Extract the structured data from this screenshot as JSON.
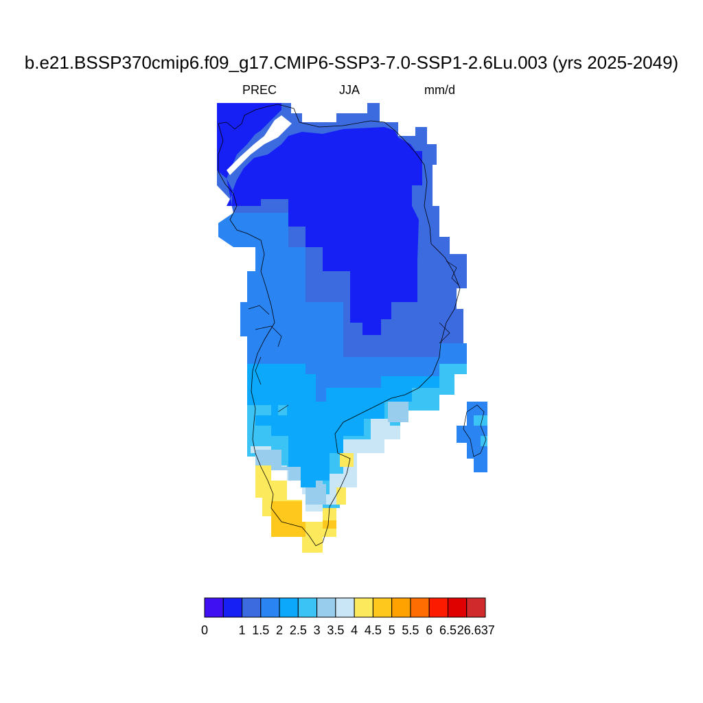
{
  "title": "b.e21.BSSP370cmip6.f09_g17.CMIP6-SSP3-7.0-SSP1-2.6Lu.003 (yrs 2025-2049)",
  "subtitle": {
    "left": "PREC",
    "center": "JJA",
    "right": "mm/d"
  },
  "colorbar": {
    "colors": [
      "#3f10f2",
      "#1620f5",
      "#3c6be0",
      "#2a84f2",
      "#0ba8fb",
      "#3cc3f6",
      "#98cdee",
      "#c9e6f7",
      "#fde95c",
      "#ffc81d",
      "#ffa200",
      "#fe6d01",
      "#fd1b00",
      "#df0000",
      "#d12a2c"
    ],
    "labels": [
      "0",
      "1",
      "1.5",
      "2",
      "2.5",
      "3",
      "3.5",
      "4",
      "4.5",
      "5",
      "5.5",
      "6",
      "6.5",
      "26.637"
    ]
  }
}
